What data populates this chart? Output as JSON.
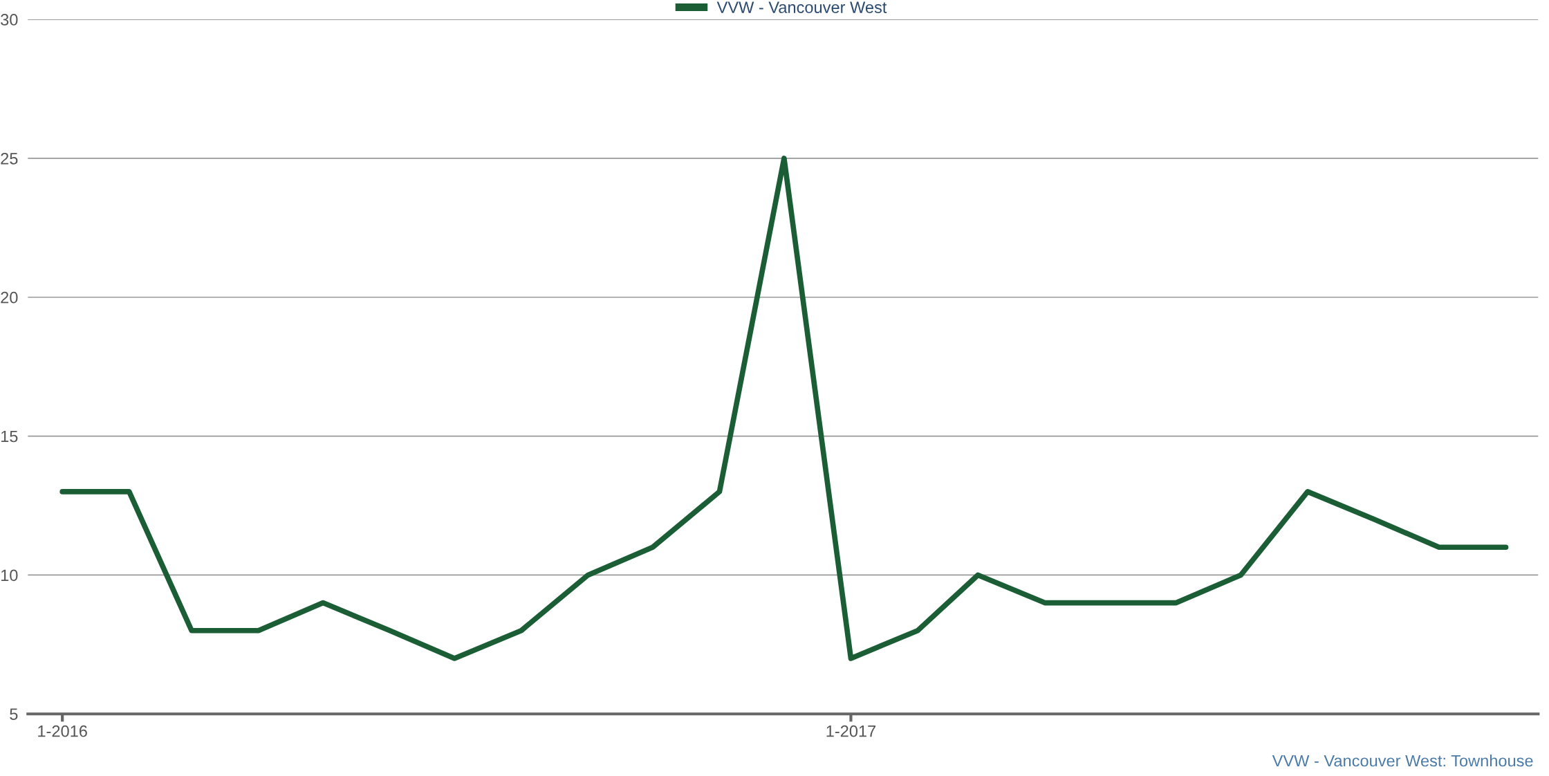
{
  "chart_data": {
    "type": "line",
    "x": [
      "2016-01",
      "2016-02",
      "2016-03",
      "2016-04",
      "2016-05",
      "2016-06",
      "2016-07",
      "2016-08",
      "2016-09",
      "2016-10",
      "2016-11",
      "2016-12",
      "2017-01",
      "2017-02",
      "2017-03",
      "2017-04",
      "2017-05",
      "2017-06",
      "2017-07",
      "2017-08",
      "2017-09",
      "2017-10",
      "2017-11"
    ],
    "series": [
      {
        "name": "VVW - Vancouver West",
        "color": "#1b5e36",
        "values": [
          13,
          13,
          8,
          8,
          9,
          8,
          7,
          8,
          10,
          11,
          13,
          25,
          7,
          8,
          10,
          9,
          9,
          9,
          10,
          13,
          12,
          11,
          11
        ]
      }
    ],
    "xlim": [
      "2015-12-16",
      "2017-11-16"
    ],
    "xticks": [
      {
        "value": "2016-01",
        "label": "1-2016"
      },
      {
        "value": "2017-01",
        "label": "1-2017"
      }
    ],
    "ylim": [
      5,
      30
    ],
    "yticks": [
      5,
      10,
      15,
      20,
      25,
      30
    ],
    "grid": "y",
    "legend": "top",
    "marker": "none",
    "line_style": "solid",
    "annotations": [
      "VVW - Vancouver West: Townhouse"
    ]
  }
}
